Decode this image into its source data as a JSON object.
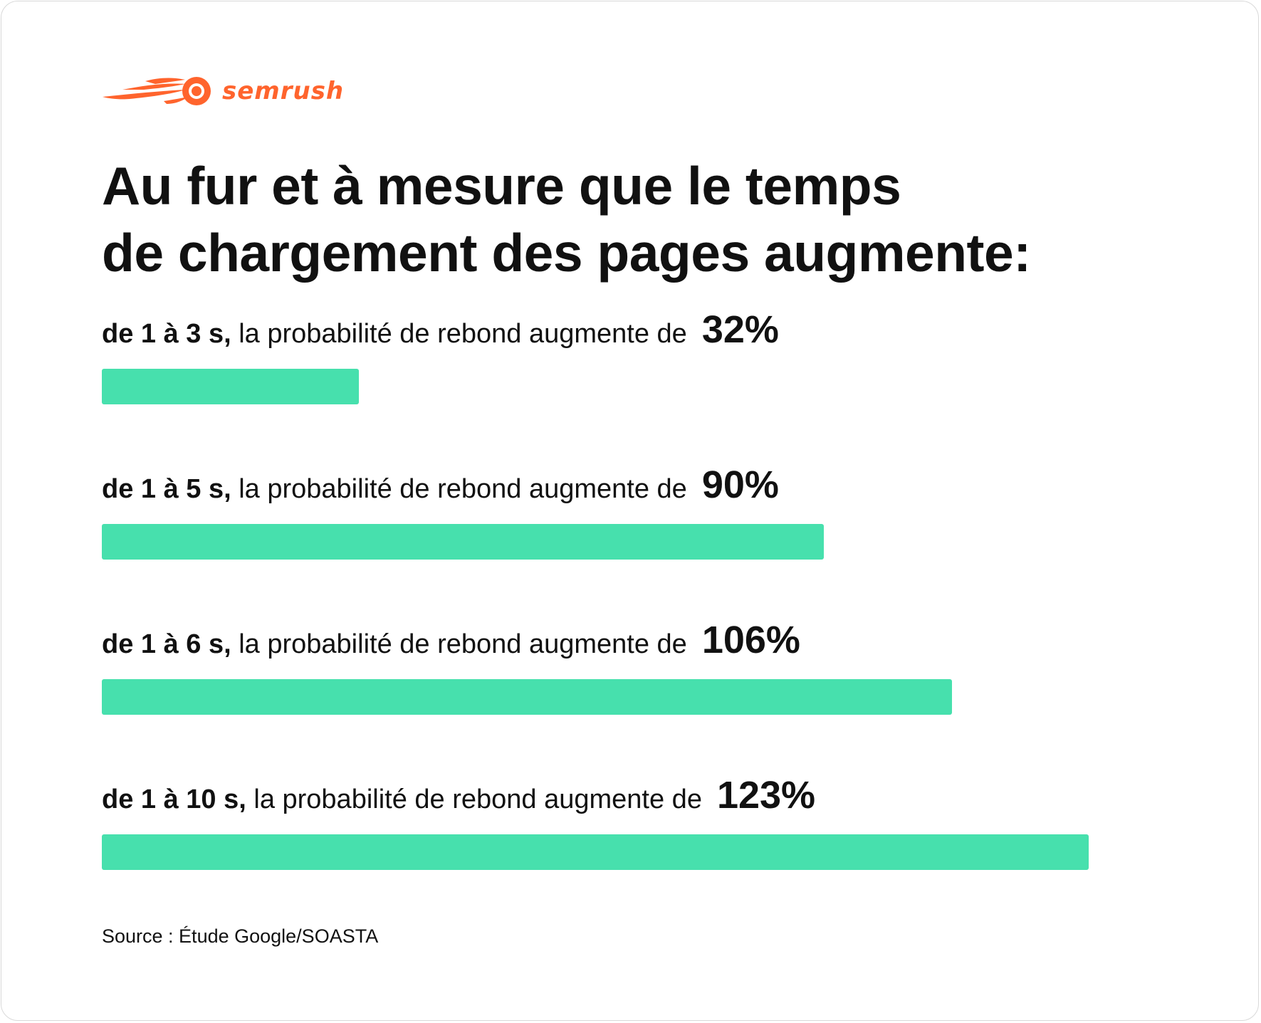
{
  "brand": {
    "name": "semrush",
    "icon": "semrush-comet-icon",
    "color": "#ff642d"
  },
  "title_lines": [
    "Au fur et à mesure que le temps",
    "de chargement des pages augmente:"
  ],
  "chart_data": {
    "type": "bar",
    "orientation": "horizontal",
    "title": "Au fur et à mesure que le temps de chargement des pages augmente:",
    "xlabel": "",
    "ylabel": "",
    "xlim": [
      0,
      123
    ],
    "grid": false,
    "bar_color": "#47e0ad",
    "categories": [
      "de 1 à 3 s,",
      "de 1 à 5 s,",
      "de 1 à 6 s,",
      "de 1 à 10 s,"
    ],
    "values": [
      32,
      90,
      106,
      123
    ],
    "value_labels": [
      "32%",
      "90%",
      "106%",
      "123%"
    ],
    "label_text": "la probabilité de rebond augmente de"
  },
  "source": "Source : Étude Google/SOASTA"
}
